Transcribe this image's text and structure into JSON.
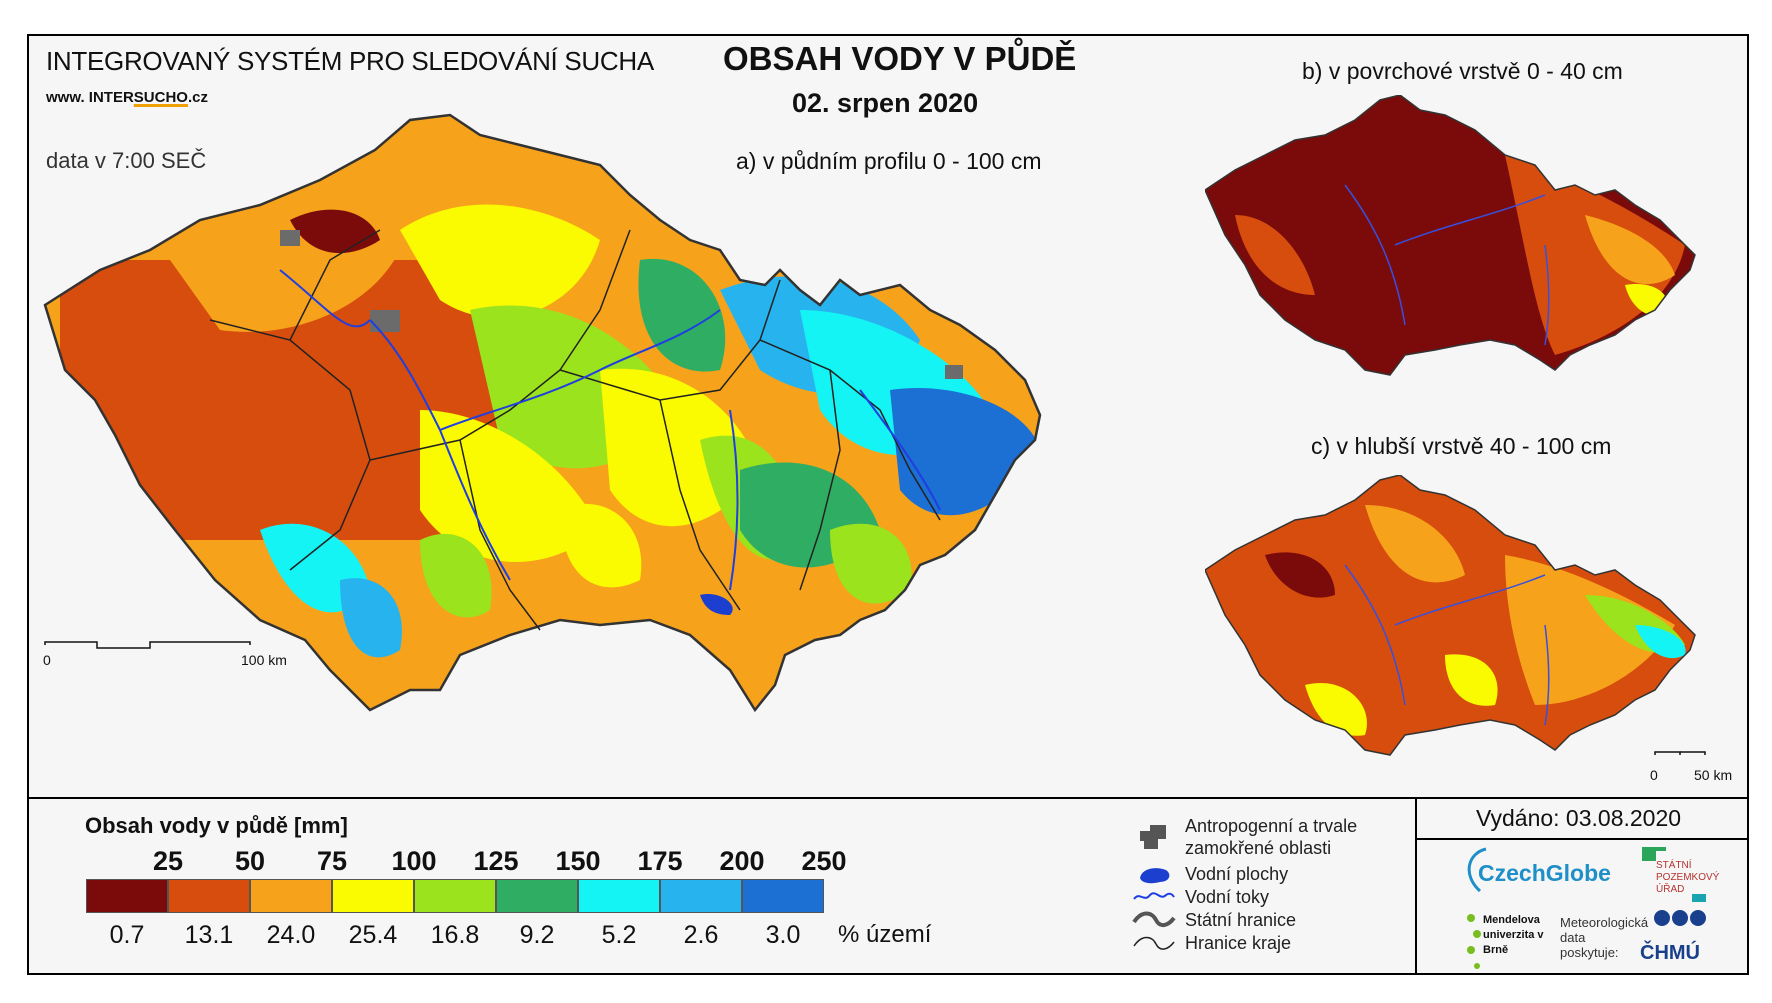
{
  "header": {
    "system_title": "INTEGROVANÝ SYSTÉM PRO SLEDOVÁNÍ SUCHA",
    "website_prefix": "www. INTER",
    "website_highlight": "SUCHO",
    "website_suffix": ".cz",
    "time_note": "data v 7:00 SEČ",
    "map_title": "OBSAH VODY V PŮDĚ",
    "map_date": "02. srpen 2020"
  },
  "panels": {
    "a_label": "a) v půdním profilu 0 - 100 cm",
    "b_label": "b) v povrchové vrstvě 0 - 40 cm",
    "c_label": "c) v hlubší vrstvě 40 - 100 cm",
    "a_scale": {
      "zero": "0",
      "end": "100 km"
    },
    "c_scale": {
      "zero": "0",
      "end": "50 km"
    }
  },
  "legend": {
    "title": "Obsah vody v půdě  [mm]",
    "thresholds": [
      "25",
      "50",
      "75",
      "100",
      "125",
      "150",
      "175",
      "200",
      "250"
    ],
    "classes": [
      {
        "color": "#7b0b0b",
        "percent": "0.7"
      },
      {
        "color": "#d64d0e",
        "percent": "13.1"
      },
      {
        "color": "#f7a21b",
        "percent": "24.0"
      },
      {
        "color": "#fafa00",
        "percent": "25.4"
      },
      {
        "color": "#9be31c",
        "percent": "16.8"
      },
      {
        "color": "#2fae63",
        "percent": "9.2"
      },
      {
        "color": "#14f4f4",
        "percent": "5.2"
      },
      {
        "color": "#27b4ee",
        "percent": "2.6"
      },
      {
        "color": "#1c6fd3",
        "percent": "3.0"
      }
    ],
    "percent_label": "% území"
  },
  "symbols": {
    "anthropogenic_line1": "Antropogenní a trvale",
    "anthropogenic_line2": "zamokřené oblasti",
    "water_bodies": "Vodní plochy",
    "rivers": "Vodní toky",
    "state_border": "Státní hranice",
    "region_border": "Hranice kraje"
  },
  "footer": {
    "issued": "Vydáno: 03.08.2020",
    "logo_czechglobe": "CzechGlobe",
    "logo_spu": "STÁTNÍ POZEMKOVÝ ÚŘAD",
    "logo_mendel": "Mendelova univerzita v Brně",
    "meteo_note": "Meteorologická data poskytuje:",
    "logo_chmu": "ČHMÚ"
  }
}
